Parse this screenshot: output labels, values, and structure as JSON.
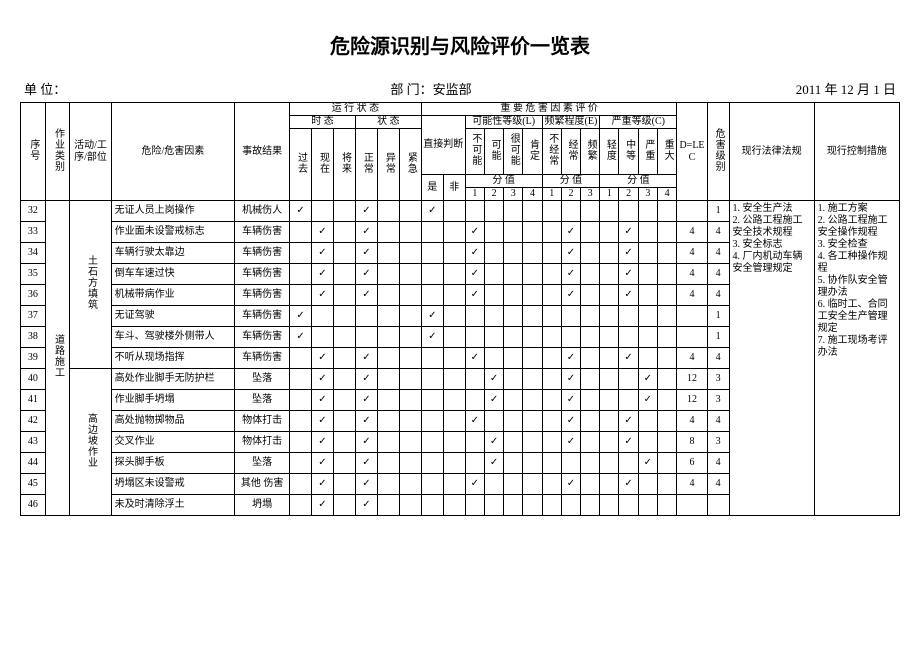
{
  "title": "危险源识别与风险评价一览表",
  "unit_label": "单 位：",
  "dept_label": "部 门：安监部",
  "date_label": "2011 年 12 月 1 日",
  "headers": {
    "seq": "序号",
    "cat": "作业类别",
    "act": "活动/工序/部位",
    "haz": "危险/危害因素",
    "res": "事故结果",
    "run": "运 行 状 态",
    "eval": "重 要 危 害 因 素 评 价",
    "time": "时 态",
    "state": "状 态",
    "past": "过去",
    "now": "现在",
    "fut": "将来",
    "norm": "正常",
    "abn": "异常",
    "emg": "紧急",
    "direct": "直接判断",
    "yes": "是",
    "no": "非",
    "L": "可能性等级(L)",
    "E": "频繁程度(E)",
    "C": "严重等级(C)",
    "score": "分 值",
    "L1": "不可能",
    "L2": "可能",
    "L3": "很可能",
    "L4": "肯定",
    "E1": "不经常",
    "E2": "经常",
    "E3": "频繁",
    "C1": "轻度",
    "C2": "中等",
    "C3": "严重",
    "C4": "重大",
    "D": "D=LEC",
    "lvl": "危害级别",
    "laws": "现行法律法规",
    "ctrl": "现行控制措施"
  },
  "category": "道路施工",
  "groups": [
    {
      "name": "土石方填筑",
      "start": 32,
      "end": 39
    },
    {
      "name": "高边坡作业",
      "start": 40,
      "end": 46
    }
  ],
  "rows": [
    {
      "n": 32,
      "haz": "无证人员上岗操作",
      "res": "机械伤人",
      "t": [
        1,
        0,
        0
      ],
      "s": [
        1,
        0,
        0
      ],
      "d": [
        "y",
        ""
      ],
      "L": [
        0,
        0,
        0,
        0
      ],
      "E": [
        0,
        0,
        0
      ],
      "C": [
        0,
        0,
        0,
        0
      ],
      "D": "",
      "lv": "1"
    },
    {
      "n": 33,
      "haz": "作业面未设警戒标志",
      "res": "车辆伤害",
      "t": [
        0,
        1,
        0
      ],
      "s": [
        1,
        0,
        0
      ],
      "d": [
        "",
        ""
      ],
      "L": [
        1,
        0,
        0,
        0
      ],
      "E": [
        0,
        1,
        0
      ],
      "C": [
        0,
        1,
        0,
        0
      ],
      "D": "4",
      "lv": "4"
    },
    {
      "n": 34,
      "haz": "车辆行驶太靠边",
      "res": "车辆伤害",
      "t": [
        0,
        1,
        0
      ],
      "s": [
        1,
        0,
        0
      ],
      "d": [
        "",
        ""
      ],
      "L": [
        1,
        0,
        0,
        0
      ],
      "E": [
        0,
        1,
        0
      ],
      "C": [
        0,
        1,
        0,
        0
      ],
      "D": "4",
      "lv": "4"
    },
    {
      "n": 35,
      "haz": "倒车车速过快",
      "res": "车辆伤害",
      "t": [
        0,
        1,
        0
      ],
      "s": [
        1,
        0,
        0
      ],
      "d": [
        "",
        ""
      ],
      "L": [
        1,
        0,
        0,
        0
      ],
      "E": [
        0,
        1,
        0
      ],
      "C": [
        0,
        1,
        0,
        0
      ],
      "D": "4",
      "lv": "4"
    },
    {
      "n": 36,
      "haz": "机械带病作业",
      "res": "车辆伤害",
      "t": [
        0,
        1,
        0
      ],
      "s": [
        1,
        0,
        0
      ],
      "d": [
        "",
        ""
      ],
      "L": [
        1,
        0,
        0,
        0
      ],
      "E": [
        0,
        1,
        0
      ],
      "C": [
        0,
        1,
        0,
        0
      ],
      "D": "4",
      "lv": "4"
    },
    {
      "n": 37,
      "haz": "无证驾驶",
      "res": "车辆伤害",
      "t": [
        1,
        0,
        0
      ],
      "s": [
        0,
        0,
        0
      ],
      "d": [
        "y",
        ""
      ],
      "L": [
        0,
        0,
        0,
        0
      ],
      "E": [
        0,
        0,
        0
      ],
      "C": [
        0,
        0,
        0,
        0
      ],
      "D": "",
      "lv": "1"
    },
    {
      "n": 38,
      "haz": "车斗、驾驶楼外侧带人",
      "res": "车辆伤害",
      "t": [
        1,
        0,
        0
      ],
      "s": [
        0,
        0,
        0
      ],
      "d": [
        "y",
        ""
      ],
      "L": [
        0,
        0,
        0,
        0
      ],
      "E": [
        0,
        0,
        0
      ],
      "C": [
        0,
        0,
        0,
        0
      ],
      "D": "",
      "lv": "1"
    },
    {
      "n": 39,
      "haz": "不听从现场指挥",
      "res": "车辆伤害",
      "t": [
        0,
        1,
        0
      ],
      "s": [
        1,
        0,
        0
      ],
      "d": [
        "",
        ""
      ],
      "L": [
        1,
        0,
        0,
        0
      ],
      "E": [
        0,
        1,
        0
      ],
      "C": [
        0,
        1,
        0,
        0
      ],
      "D": "4",
      "lv": "4"
    },
    {
      "n": 40,
      "haz": "高处作业脚手无防护栏",
      "res": "坠落",
      "t": [
        0,
        1,
        0
      ],
      "s": [
        1,
        0,
        0
      ],
      "d": [
        "",
        ""
      ],
      "L": [
        0,
        1,
        0,
        0
      ],
      "E": [
        0,
        1,
        0
      ],
      "C": [
        0,
        0,
        1,
        0
      ],
      "D": "12",
      "lv": "3"
    },
    {
      "n": 41,
      "haz": "作业脚手坍塌",
      "res": "坠落",
      "t": [
        0,
        1,
        0
      ],
      "s": [
        1,
        0,
        0
      ],
      "d": [
        "",
        ""
      ],
      "L": [
        0,
        1,
        0,
        0
      ],
      "E": [
        0,
        1,
        0
      ],
      "C": [
        0,
        0,
        1,
        0
      ],
      "D": "12",
      "lv": "3"
    },
    {
      "n": 42,
      "haz": "高处抛物掷物品",
      "res": "物体打击",
      "t": [
        0,
        1,
        0
      ],
      "s": [
        1,
        0,
        0
      ],
      "d": [
        "",
        ""
      ],
      "L": [
        1,
        0,
        0,
        0
      ],
      "E": [
        0,
        1,
        0
      ],
      "C": [
        0,
        1,
        0,
        0
      ],
      "D": "4",
      "lv": "4"
    },
    {
      "n": 43,
      "haz": "交叉作业",
      "res": "物体打击",
      "t": [
        0,
        1,
        0
      ],
      "s": [
        1,
        0,
        0
      ],
      "d": [
        "",
        ""
      ],
      "L": [
        0,
        1,
        0,
        0
      ],
      "E": [
        0,
        1,
        0
      ],
      "C": [
        0,
        1,
        0,
        0
      ],
      "D": "8",
      "lv": "3"
    },
    {
      "n": 44,
      "haz": "探头脚手板",
      "res": "坠落",
      "t": [
        0,
        1,
        0
      ],
      "s": [
        1,
        0,
        0
      ],
      "d": [
        "",
        ""
      ],
      "L": [
        0,
        1,
        0,
        0
      ],
      "E": [
        0,
        0,
        0
      ],
      "C": [
        0,
        0,
        1,
        0
      ],
      "D": "6",
      "lv": "4"
    },
    {
      "n": 45,
      "haz": "坍塌区未设警戒",
      "res": "其他 伤害",
      "t": [
        0,
        1,
        0
      ],
      "s": [
        1,
        0,
        0
      ],
      "d": [
        "",
        ""
      ],
      "L": [
        1,
        0,
        0,
        0
      ],
      "E": [
        0,
        1,
        0
      ],
      "C": [
        0,
        1,
        0,
        0
      ],
      "D": "4",
      "lv": "4"
    },
    {
      "n": 46,
      "haz": "未及时清除浮土",
      "res": "坍塌",
      "t": [
        0,
        1,
        0
      ],
      "s": [
        1,
        0,
        0
      ],
      "d": [
        "",
        ""
      ],
      "L": [
        0,
        0,
        0,
        0
      ],
      "E": [
        0,
        0,
        0
      ],
      "C": [
        0,
        0,
        0,
        0
      ],
      "D": "",
      "lv": ""
    }
  ],
  "laws_text": "1. 安全生产法\n2. 公路工程施工安全技术规程\n3. 安全标志\n4. 厂内机动车辆安全管理规定",
  "ctrl_text": "1. 施工方案\n2. 公路工程施工安全操作规程\n3. 安全检查\n4. 各工种操作规程\n5. 协作队安全管理办法\n6. 临时工、合同工安全生产管理规定\n7. 施工现场考评办法"
}
